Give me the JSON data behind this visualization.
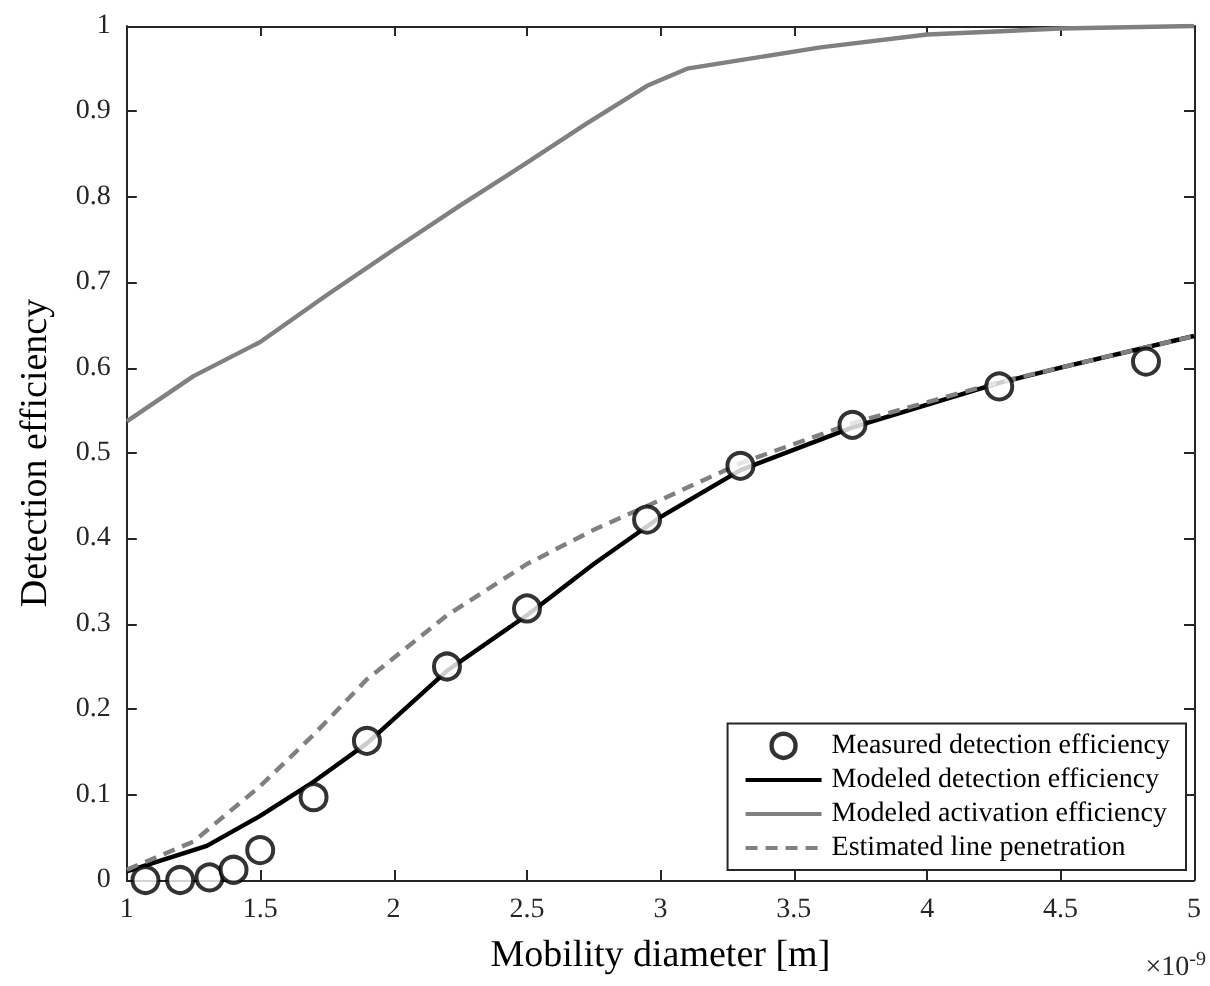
{
  "chart_data": {
    "type": "line",
    "xlabel": "Mobility diameter [m]",
    "ylabel": "Detection efficiency",
    "annotations": [
      "×10$^{-9}$"
    ],
    "xlim": [
      1,
      5
    ],
    "xticks": [
      1,
      1.5,
      2,
      2.5,
      3,
      3.5,
      4,
      4.5,
      5
    ],
    "ylim": [
      0,
      1
    ],
    "yticks": [
      0,
      0.1,
      0.2,
      0.3,
      0.4,
      0.5,
      0.6,
      0.7,
      0.8,
      0.9,
      1
    ],
    "grid": false,
    "legend": "bottom right",
    "series": [
      {
        "name": "Measured detection efficiency",
        "type": "scatter",
        "marker": "circle",
        "color": "#000000",
        "x": [
          1.07,
          1.2,
          1.31,
          1.4,
          1.5,
          1.7,
          1.9,
          2.2,
          2.5,
          2.95,
          3.3,
          3.72,
          4.27,
          4.82
        ],
        "values": [
          0,
          0,
          0.003,
          0.012,
          0.035,
          0.097,
          0.163,
          0.25,
          0.318,
          0.422,
          0.485,
          0.533,
          0.578,
          0.607
        ]
      },
      {
        "name": "Modeled detection efficiency",
        "line_style": "solid",
        "color": "#000000",
        "x": [
          1,
          1.3,
          1.5,
          1.7,
          1.9,
          2.2,
          2.5,
          2.75,
          3,
          3.3,
          3.72,
          4.27,
          4.5,
          5
        ],
        "values": [
          0.01,
          0.04,
          0.075,
          0.115,
          0.16,
          0.245,
          0.31,
          0.37,
          0.425,
          0.48,
          0.53,
          0.582,
          0.6,
          0.637
        ]
      },
      {
        "name": "Modeled activation efficiency",
        "line_style": "solid",
        "color": "#808080",
        "x": [
          1,
          1.25,
          1.5,
          1.75,
          2,
          2.25,
          2.5,
          2.72,
          2.95,
          3.1,
          3.3,
          3.6,
          4,
          4.5,
          5
        ],
        "values": [
          0.537,
          0.59,
          0.63,
          0.685,
          0.738,
          0.79,
          0.84,
          0.885,
          0.93,
          0.95,
          0.96,
          0.975,
          0.99,
          0.997,
          1
        ]
      },
      {
        "name": "Estimated line penetration",
        "line_style": "dashed",
        "color": "#808080",
        "x": [
          1,
          1.25,
          1.5,
          1.7,
          1.9,
          2.2,
          2.5,
          2.75,
          3,
          3.3,
          3.72,
          4.27,
          5
        ],
        "values": [
          0.012,
          0.045,
          0.11,
          0.17,
          0.235,
          0.31,
          0.37,
          0.41,
          0.445,
          0.488,
          0.535,
          0.583,
          0.637
        ]
      }
    ]
  }
}
